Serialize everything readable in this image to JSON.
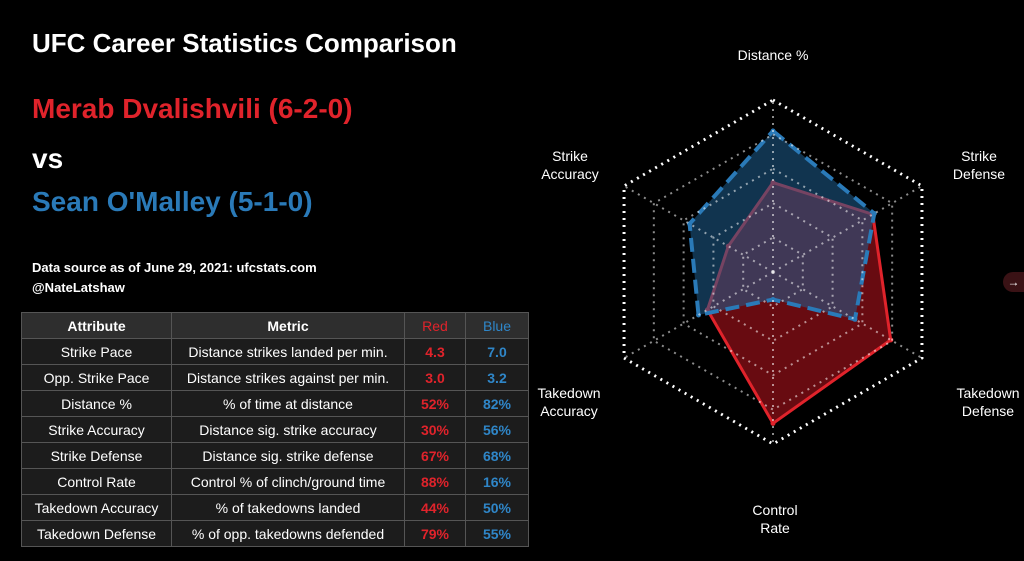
{
  "header": {
    "title": "UFC Career Statistics Comparison",
    "red_fighter": "Merab Dvalishvili (6-2-0)",
    "vs": "vs",
    "blue_fighter": "Sean O'Malley (5-1-0)",
    "source_line": "Data source as of June 29, 2021: ufcstats.com",
    "author": "@NateLatshaw"
  },
  "table": {
    "headers": {
      "attribute": "Attribute",
      "metric": "Metric",
      "red": "Red",
      "blue": "Blue"
    },
    "rows": [
      {
        "attribute": "Strike Pace",
        "metric": "Distance strikes landed per min.",
        "red": "4.3",
        "blue": "7.0"
      },
      {
        "attribute": "Opp. Strike Pace",
        "metric": "Distance strikes against per min.",
        "red": "3.0",
        "blue": "3.2"
      },
      {
        "attribute": "Distance %",
        "metric": "% of time at distance",
        "red": "52%",
        "blue": "82%"
      },
      {
        "attribute": "Strike Accuracy",
        "metric": "Distance sig. strike accuracy",
        "red": "30%",
        "blue": "56%"
      },
      {
        "attribute": "Strike Defense",
        "metric": "Distance sig. strike defense",
        "red": "67%",
        "blue": "68%"
      },
      {
        "attribute": "Control Rate",
        "metric": "Control % of clinch/ground time",
        "red": "88%",
        "blue": "16%"
      },
      {
        "attribute": "Takedown Accuracy",
        "metric": "% of takedowns landed",
        "red": "44%",
        "blue": "50%"
      },
      {
        "attribute": "Takedown Defense",
        "metric": "% of opp. takedowns defended",
        "red": "79%",
        "blue": "55%"
      }
    ]
  },
  "chart_data": {
    "type": "radar",
    "axes": [
      {
        "label": [
          "Distance %"
        ]
      },
      {
        "label": [
          "Strike",
          "Defense"
        ]
      },
      {
        "label": [
          "Takedown",
          "Defense"
        ]
      },
      {
        "label": [
          "Control",
          "Rate"
        ]
      },
      {
        "label": [
          "Takedown",
          "Accuracy"
        ]
      },
      {
        "label": [
          "Strike",
          "Accuracy"
        ]
      }
    ],
    "range": [
      0,
      100
    ],
    "rings": 5,
    "series": [
      {
        "name": "Red",
        "fighter": "Merab Dvalishvili",
        "values": [
          52,
          67,
          79,
          88,
          44,
          30
        ],
        "color": "#e0232b",
        "fill": "#a0111a"
      },
      {
        "name": "Blue",
        "fighter": "Sean O'Malley",
        "values": [
          82,
          68,
          55,
          16,
          50,
          56
        ],
        "color": "#2a7ab8",
        "fill": "#1f5f8f"
      }
    ]
  },
  "nav": {
    "next_icon": "→"
  }
}
